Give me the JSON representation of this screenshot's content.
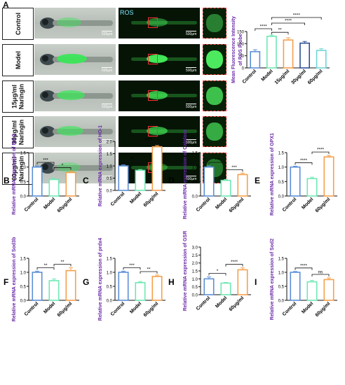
{
  "panel_a": {
    "letter": "A",
    "rows": [
      {
        "label": "Control",
        "scale": "500μm"
      },
      {
        "label": "Model",
        "scale": "500μm"
      },
      {
        "label": "15μg/ml\nNaringin",
        "scale": "500μm"
      },
      {
        "label": "30μg/ml\nNaringin",
        "scale": "500μm"
      },
      {
        "label": "60μg/ml\nNaringin",
        "scale": "500μm"
      }
    ],
    "ros_label": "ROS"
  },
  "colors": {
    "control": "#5b8fd6",
    "model": "#6ee8b4",
    "c15": "#f5a04c",
    "c30": "#2e4f96",
    "c60": "#6fd6d8",
    "significance": "#111111"
  },
  "chart_data": [
    {
      "id": "A-ros",
      "type": "bar",
      "ylabel": "Mean Fluorescence Intensity\nof ROS Probe",
      "categories": [
        "Control",
        "Model",
        "15μg/ml",
        "30μg/ml",
        "60μg/ml"
      ],
      "values": [
        67,
        130,
        115,
        102,
        72
      ],
      "errors": [
        8,
        5,
        9,
        7,
        7
      ],
      "ylim": [
        0,
        150
      ],
      "yticks": [
        0,
        50,
        100,
        150
      ],
      "significance": [
        {
          "from": 0,
          "to": 1,
          "label": "****",
          "level": 0
        },
        {
          "from": 1,
          "to": 2,
          "label": "**",
          "level": 0
        },
        {
          "from": 1,
          "to": 3,
          "label": "****",
          "level": 1
        },
        {
          "from": 1,
          "to": 4,
          "label": "****",
          "level": 2
        }
      ]
    },
    {
      "id": "B",
      "letter": "B",
      "type": "bar",
      "ylabel": "Relative mRNA expression of Nrf-2",
      "categories": [
        "Control",
        "Model",
        "60μg/ml"
      ],
      "values": [
        1.0,
        0.57,
        0.81
      ],
      "errors": [
        0.04,
        0.04,
        0.05
      ],
      "ylim": [
        0,
        1.5
      ],
      "yticks": [
        "0.0",
        "0.5",
        "1.0",
        "1.5"
      ],
      "significance": [
        {
          "from": 0,
          "to": 1,
          "label": "***",
          "level": 0
        },
        {
          "from": 1,
          "to": 2,
          "label": "*",
          "level": 0
        }
      ]
    },
    {
      "id": "C",
      "letter": "C",
      "type": "bar",
      "ylabel": "Relative mRNA expression of HO-1",
      "categories": [
        "Control",
        "Model",
        "60μg/ml"
      ],
      "values": [
        1.0,
        0.82,
        1.78
      ],
      "errors": [
        0.04,
        0.03,
        0.05
      ],
      "ylim": [
        0,
        2.0
      ],
      "yticks": [
        "0.0",
        "0.5",
        "1.0",
        "1.5",
        "2.0"
      ],
      "significance": [
        {
          "from": 0,
          "to": 1,
          "label": "**",
          "level": 0
        },
        {
          "from": 1,
          "to": 2,
          "label": "****",
          "level": 0
        }
      ]
    },
    {
      "id": "D",
      "letter": "D",
      "type": "bar",
      "ylabel": "Relative mRNA expression of Catalase",
      "categories": [
        "Control",
        "Model",
        "60μg/ml"
      ],
      "values": [
        1.0,
        0.54,
        0.74
      ],
      "errors": [
        0.04,
        0.03,
        0.05
      ],
      "ylim": [
        0,
        1.5
      ],
      "yticks": [
        "0.0",
        "0.5",
        "1.0",
        "1.5"
      ],
      "significance": [
        {
          "from": 0,
          "to": 1,
          "label": "***",
          "level": 0
        },
        {
          "from": 1,
          "to": 2,
          "label": "***",
          "level": 0
        }
      ]
    },
    {
      "id": "E",
      "letter": "E",
      "type": "bar",
      "ylabel": "Relative mRNA expression of GPX1",
      "categories": [
        "Control",
        "Model",
        "60μg/ml"
      ],
      "values": [
        1.0,
        0.6,
        1.35
      ],
      "errors": [
        0.03,
        0.05,
        0.05
      ],
      "ylim": [
        0,
        1.5
      ],
      "yticks": [
        "0.0",
        "0.5",
        "1.0",
        "1.5"
      ],
      "significance": [
        {
          "from": 0,
          "to": 1,
          "label": "****",
          "level": 0
        },
        {
          "from": 1,
          "to": 2,
          "label": "****",
          "level": 0
        }
      ]
    },
    {
      "id": "F",
      "letter": "F",
      "type": "bar",
      "ylabel": "Relative mRNA expression of Sod3b",
      "categories": [
        "Control",
        "Model",
        "60μg/ml"
      ],
      "values": [
        1.0,
        0.7,
        1.06
      ],
      "errors": [
        0.04,
        0.06,
        0.1
      ],
      "ylim": [
        0,
        1.5
      ],
      "yticks": [
        "0.0",
        "0.5",
        "1.0",
        "1.5"
      ],
      "significance": [
        {
          "from": 0,
          "to": 1,
          "label": "**",
          "level": 0
        },
        {
          "from": 1,
          "to": 2,
          "label": "**",
          "level": 0
        }
      ]
    },
    {
      "id": "G",
      "letter": "G",
      "type": "bar",
      "ylabel": "Relative mRNA expression of prdx4",
      "categories": [
        "Control",
        "Model",
        "60μg/ml"
      ],
      "values": [
        1.0,
        0.63,
        0.85
      ],
      "errors": [
        0.04,
        0.04,
        0.05
      ],
      "ylim": [
        0,
        1.5
      ],
      "yticks": [
        "0.0",
        "0.5",
        "1.0",
        "1.5"
      ],
      "significance": [
        {
          "from": 0,
          "to": 1,
          "label": "***",
          "level": 0
        },
        {
          "from": 1,
          "to": 2,
          "label": "**",
          "level": 0
        }
      ]
    },
    {
      "id": "H",
      "letter": "H",
      "type": "bar",
      "ylabel": "Relative mRNA expression of GSR",
      "categories": [
        "Control",
        "Model",
        "60μg/ml"
      ],
      "values": [
        1.0,
        0.73,
        1.57
      ],
      "errors": [
        0.12,
        0.04,
        0.12
      ],
      "ylim": [
        0,
        3.0
      ],
      "yticks": [
        "0.0",
        "0.5",
        "1.0",
        "1.5",
        "2.0",
        "2.5",
        "3.0"
      ],
      "significance": [
        {
          "from": 0,
          "to": 1,
          "label": "*",
          "level": 0
        },
        {
          "from": 1,
          "to": 2,
          "label": "****",
          "level": 0
        }
      ]
    },
    {
      "id": "I",
      "letter": "I",
      "type": "bar",
      "ylabel": "Relative mRNA expression of Sod2",
      "categories": [
        "Control",
        "Model",
        "60μg/ml"
      ],
      "values": [
        1.0,
        0.66,
        0.74
      ],
      "errors": [
        0.03,
        0.05,
        0.06
      ],
      "ylim": [
        0,
        1.5
      ],
      "yticks": [
        "0.0",
        "0.5",
        "1.0",
        "1.5"
      ],
      "significance": [
        {
          "from": 0,
          "to": 1,
          "label": "****",
          "level": 0
        },
        {
          "from": 1,
          "to": 2,
          "label": "ns",
          "level": 0
        }
      ]
    }
  ]
}
